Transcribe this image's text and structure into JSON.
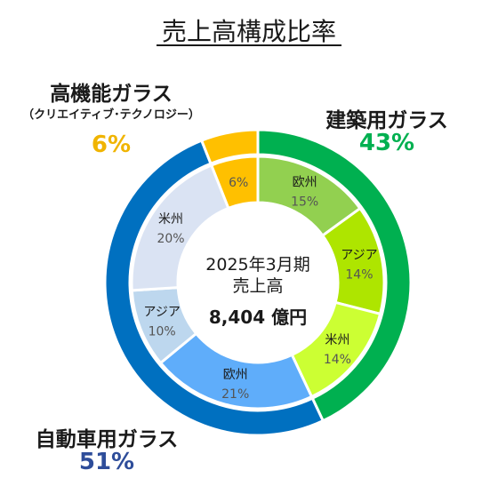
{
  "chart_data": {
    "type": "pie",
    "title": "売上高構成比率",
    "center": {
      "line1": "2025年3月期",
      "line2": "売上高",
      "total": "8,404 億円"
    },
    "outer_ring": [
      {
        "name": "建築用ガラス",
        "value": 43,
        "value_label": "43%",
        "color": "#00b050"
      },
      {
        "name": "自動車用ガラス",
        "value": 51,
        "value_label": "51%",
        "color": "#0070c0"
      },
      {
        "name": "高機能ガラス",
        "subtitle": "（クリエイティブ･テクノロジー）",
        "value": 6,
        "value_label": "6%",
        "color": "#ffc000"
      }
    ],
    "inner_ring": [
      {
        "name": "欧州",
        "value": 15,
        "value_label": "15%",
        "color": "#92d050",
        "parent": "建築用ガラス"
      },
      {
        "name": "アジア",
        "value": 14,
        "value_label": "14%",
        "color": "#aee500",
        "parent": "建築用ガラス"
      },
      {
        "name": "米州",
        "value": 14,
        "value_label": "14%",
        "color": "#ccff33",
        "parent": "建築用ガラス"
      },
      {
        "name": "欧州",
        "value": 21,
        "value_label": "21%",
        "color": "#5fadfa",
        "parent": "自動車用ガラス"
      },
      {
        "name": "アジア",
        "value": 10,
        "value_label": "10%",
        "color": "#bdd7ee",
        "parent": "自動車用ガラス"
      },
      {
        "name": "米州",
        "value": 20,
        "value_label": "20%",
        "color": "#dae3f3",
        "parent": "自動車用ガラス"
      },
      {
        "name": "",
        "value": 6,
        "value_label": "6%",
        "color": "#ffc000",
        "parent": "高機能ガラス"
      }
    ]
  }
}
